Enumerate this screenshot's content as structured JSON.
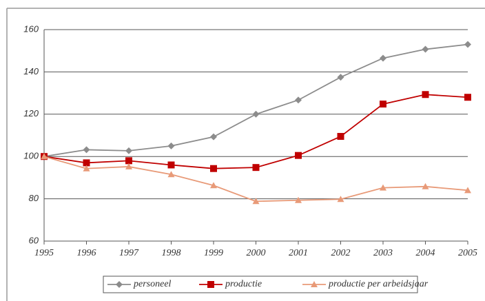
{
  "chart_data": {
    "type": "line",
    "categories": [
      "1995",
      "1996",
      "1997",
      "1998",
      "1999",
      "2000",
      "2001",
      "2002",
      "2003",
      "2004",
      "2005"
    ],
    "series": [
      {
        "name": "personeel",
        "color": "#8c8c8c",
        "marker": "diamond",
        "values": [
          100,
          103.2,
          102.7,
          105,
          109.3,
          120,
          126.7,
          137.5,
          146.5,
          150.7,
          153
        ]
      },
      {
        "name": "productie",
        "color": "#c00000",
        "marker": "square",
        "values": [
          100,
          97,
          98,
          96,
          94.3,
          94.8,
          100.5,
          109.5,
          124.8,
          129.3,
          128
        ]
      },
      {
        "name": "productie per arbeidsjaar",
        "color": "#e89a78",
        "marker": "triangle",
        "values": [
          100,
          94.3,
          95.2,
          91.5,
          86.3,
          78.8,
          79.3,
          79.8,
          85.2,
          85.8,
          84
        ]
      }
    ],
    "ylim": [
      60,
      160
    ],
    "yticks": [
      60,
      80,
      100,
      120,
      140,
      160
    ],
    "grid": true,
    "legend": "bottom"
  }
}
